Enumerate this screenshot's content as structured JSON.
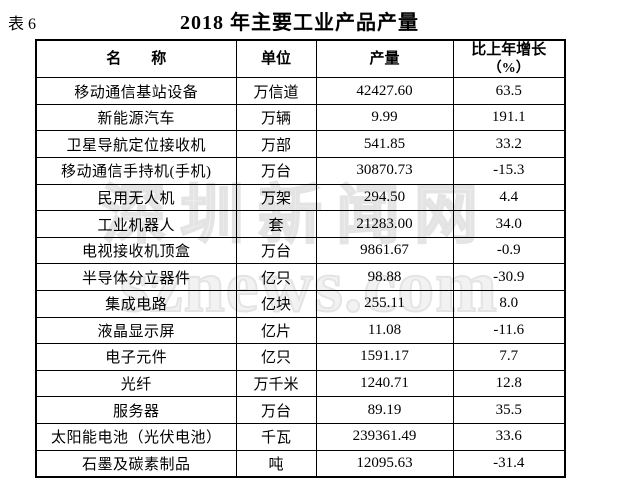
{
  "page": {
    "table_label": "表 6",
    "title": "2018 年主要工业产品产量"
  },
  "watermark": {
    "line1": "深圳新闻网",
    "line2": "sznews.com",
    "color": "#e4e4e4"
  },
  "table": {
    "headers": {
      "name": "名　　称",
      "unit": "单位",
      "output": "产量",
      "growth_line1": "比上年增长",
      "growth_line2": "（%）"
    },
    "rows": [
      {
        "name": "移动通信基站设备",
        "unit": "万信道",
        "output": "42427.60",
        "growth": "63.5"
      },
      {
        "name": "新能源汽车",
        "unit": "万辆",
        "output": "9.99",
        "growth": "191.1"
      },
      {
        "name": "卫星导航定位接收机",
        "unit": "万部",
        "output": "541.85",
        "growth": "33.2"
      },
      {
        "name": "移动通信手持机(手机)",
        "unit": "万台",
        "output": "30870.73",
        "growth": "-15.3"
      },
      {
        "name": "民用无人机",
        "unit": "万架",
        "output": "294.50",
        "growth": "4.4"
      },
      {
        "name": "工业机器人",
        "unit": "套",
        "output": "21283.00",
        "growth": "34.0"
      },
      {
        "name": "电视接收机顶盒",
        "unit": "万台",
        "output": "9861.67",
        "growth": "-0.9"
      },
      {
        "name": "半导体分立器件",
        "unit": "亿只",
        "output": "98.88",
        "growth": "-30.9"
      },
      {
        "name": "集成电路",
        "unit": "亿块",
        "output": "255.11",
        "growth": "8.0"
      },
      {
        "name": "液晶显示屏",
        "unit": "亿片",
        "output": "11.08",
        "growth": "-11.6"
      },
      {
        "name": "电子元件",
        "unit": "亿只",
        "output": "1591.17",
        "growth": "7.7"
      },
      {
        "name": "光纤",
        "unit": "万千米",
        "output": "1240.71",
        "growth": "12.8"
      },
      {
        "name": "服务器",
        "unit": "万台",
        "output": "89.19",
        "growth": "35.5"
      },
      {
        "name": "太阳能电池（光伏电池）",
        "unit": "千瓦",
        "output": "239361.49",
        "growth": "33.6"
      },
      {
        "name": "石墨及碳素制品",
        "unit": "吨",
        "output": "12095.63",
        "growth": "-31.4"
      }
    ]
  }
}
